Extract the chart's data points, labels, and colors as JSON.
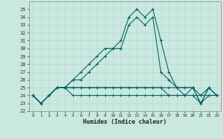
{
  "xlabel": "Humidex (Indice chaleur)",
  "x": [
    0,
    1,
    2,
    3,
    4,
    5,
    6,
    7,
    8,
    9,
    10,
    11,
    12,
    13,
    14,
    15,
    16,
    17,
    18,
    19,
    20,
    21,
    22,
    23
  ],
  "series": [
    [
      24,
      23,
      24,
      25,
      25,
      26,
      27,
      28,
      29,
      30,
      30,
      31,
      34,
      35,
      34,
      35,
      31,
      27,
      25,
      25,
      25,
      23,
      25,
      24
    ],
    [
      24,
      23,
      24,
      25,
      25,
      26,
      26,
      27,
      28,
      29,
      30,
      30,
      33,
      34,
      33,
      34,
      27,
      26,
      25,
      24,
      25,
      23,
      25,
      24
    ],
    [
      24,
      23,
      24,
      25,
      25,
      25,
      25,
      25,
      25,
      25,
      25,
      25,
      25,
      25,
      25,
      25,
      25,
      25,
      25,
      25,
      25,
      24,
      25,
      24
    ],
    [
      24,
      23,
      24,
      25,
      25,
      25,
      25,
      25,
      25,
      25,
      25,
      25,
      25,
      25,
      25,
      25,
      25,
      24,
      24,
      24,
      24,
      23,
      24,
      24
    ],
    [
      24,
      23,
      24,
      25,
      25,
      24,
      24,
      24,
      24,
      24,
      24,
      24,
      24,
      24,
      24,
      24,
      24,
      24,
      24,
      24,
      24,
      24,
      24,
      24
    ]
  ],
  "bg_color": "#c8e8e0",
  "line_color": "#006060",
  "grid_color": "#b8d8d0",
  "ylim": [
    22,
    36
  ],
  "yticks": [
    22,
    23,
    24,
    25,
    26,
    27,
    28,
    29,
    30,
    31,
    32,
    33,
    34,
    35
  ],
  "xticks": [
    0,
    1,
    2,
    3,
    4,
    5,
    6,
    7,
    8,
    9,
    10,
    11,
    12,
    13,
    14,
    15,
    16,
    17,
    18,
    19,
    20,
    21,
    22,
    23
  ]
}
